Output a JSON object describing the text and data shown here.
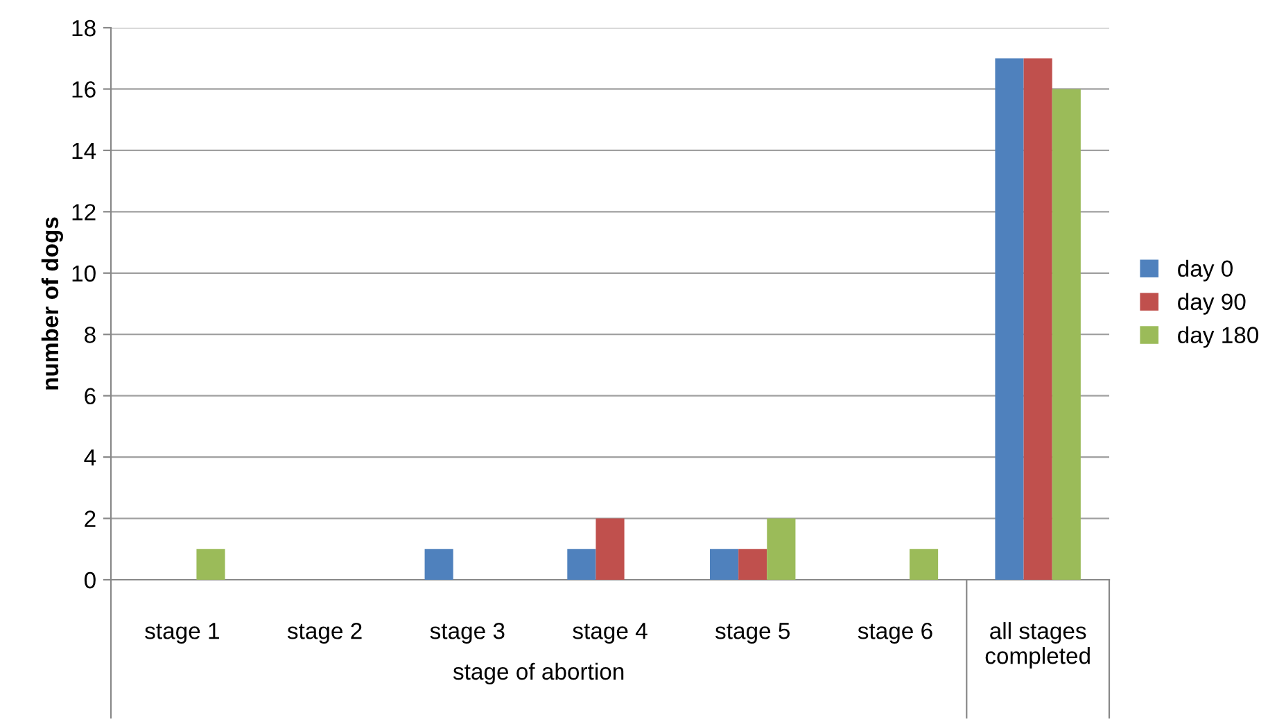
{
  "chart_data": {
    "type": "bar",
    "ylabel": "number of dogs",
    "categories": [
      "stage 1",
      "stage 2",
      "stage 3",
      "stage 4",
      "stage 5",
      "stage 6",
      "all stages\ncompleted"
    ],
    "series": [
      {
        "name": "day 0",
        "color": "#4f81bd",
        "values": [
          0,
          0,
          1,
          1,
          1,
          0,
          17
        ]
      },
      {
        "name": "day 90",
        "color": "#c0504d",
        "values": [
          0,
          0,
          0,
          2,
          1,
          0,
          17
        ]
      },
      {
        "name": "day 180",
        "color": "#9bbb59",
        "values": [
          1,
          0,
          0,
          0,
          2,
          1,
          16
        ]
      }
    ],
    "ylim": [
      0,
      18
    ],
    "yticks": [
      0,
      2,
      4,
      6,
      8,
      10,
      12,
      14,
      16,
      18
    ],
    "grid": "y",
    "legend": "right",
    "annotations": [
      "stage of abortion"
    ]
  }
}
